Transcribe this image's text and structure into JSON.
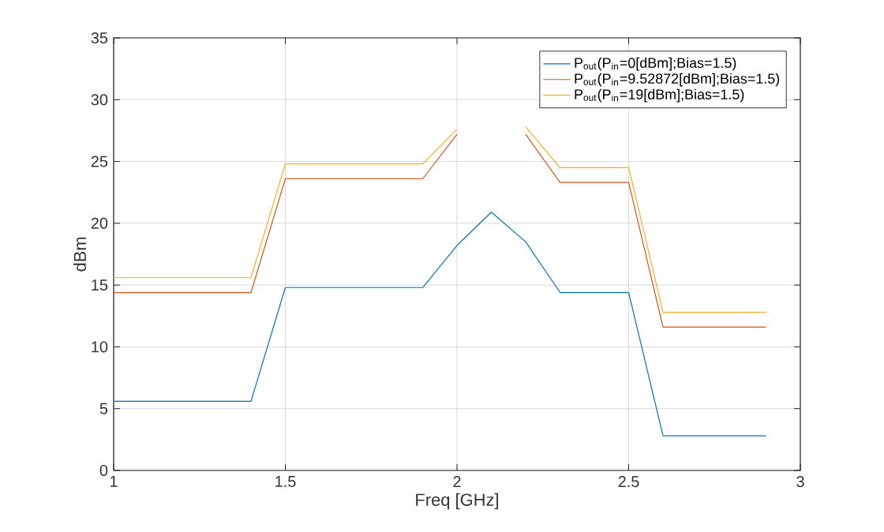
{
  "chart_data": {
    "type": "line",
    "xlabel": "Freq [GHz]",
    "ylabel": "dBm",
    "x": [
      1.0,
      1.1,
      1.2,
      1.3,
      1.4,
      1.5,
      1.6,
      1.7,
      1.8,
      1.9,
      2.0,
      2.1,
      2.2,
      2.3,
      2.4,
      2.5,
      2.6,
      2.7,
      2.8,
      2.9
    ],
    "series": [
      {
        "name": "P$_{out}$(P$_{in}$=0[dBm];Bias=1.5)",
        "color": "#0072bd",
        "values": [
          5.6,
          5.6,
          5.6,
          5.6,
          5.6,
          14.8,
          14.8,
          14.8,
          14.8,
          14.8,
          18.2,
          20.9,
          18.5,
          14.4,
          14.4,
          14.4,
          2.8,
          2.8,
          2.8,
          2.8
        ]
      },
      {
        "name": "P$_{out}$(P$_{in}$=9.52872[dBm];Bias=1.5)",
        "color": "#d95319",
        "values": [
          14.4,
          14.4,
          14.4,
          14.4,
          14.4,
          23.6,
          23.6,
          23.6,
          23.6,
          23.6,
          27.2,
          null,
          27.2,
          23.3,
          23.3,
          23.3,
          11.6,
          11.6,
          11.6,
          11.6
        ]
      },
      {
        "name": "P$_{out}$(P$_{in}$=19[dBm];Bias=1.5)",
        "color": "#edb120",
        "values": [
          15.6,
          15.6,
          15.6,
          15.6,
          15.6,
          24.8,
          24.8,
          24.8,
          24.8,
          24.8,
          27.6,
          null,
          27.8,
          24.5,
          24.5,
          24.5,
          12.8,
          12.8,
          12.8,
          12.8
        ]
      }
    ],
    "xlim": [
      1,
      3
    ],
    "ylim": [
      0,
      35
    ],
    "xticks": [
      1,
      1.5,
      2,
      2.5,
      3
    ],
    "yticks": [
      0,
      5,
      10,
      15,
      20,
      25,
      30,
      35
    ],
    "grid": true,
    "legend": "top right",
    "marker": "none",
    "line_style": "solid"
  }
}
